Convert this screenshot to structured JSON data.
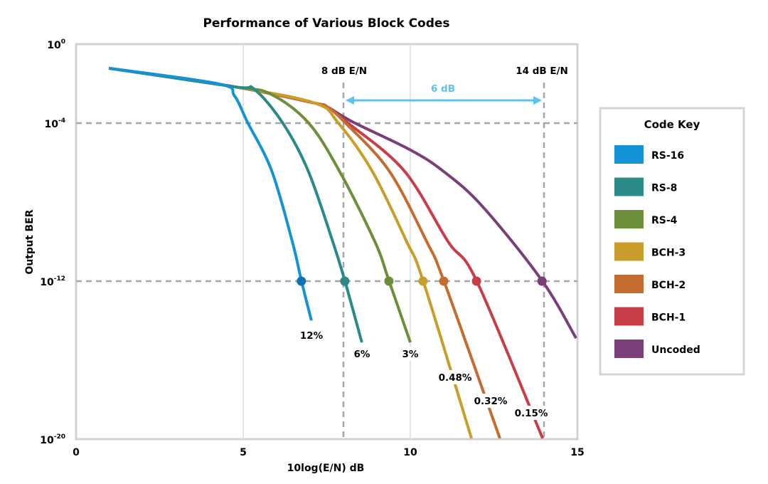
{
  "chart_data": {
    "type": "line",
    "title": "Performance of Various Block Codes",
    "xlabel": "10log(E/N) dB",
    "ylabel": "Output BER",
    "xlim": [
      0,
      15
    ],
    "ylim_log10": [
      -20,
      0
    ],
    "x_ticks": [
      {
        "value": 0,
        "label": "0"
      },
      {
        "value": 5,
        "label": "5"
      },
      {
        "value": 10,
        "label": "10"
      },
      {
        "value": 15,
        "label": "15"
      }
    ],
    "y_ticks": [
      {
        "log10": 0,
        "base": "10",
        "exp": "0"
      },
      {
        "log10": -4,
        "base": "10",
        "exp": "-4"
      },
      {
        "log10": -12,
        "base": "10",
        "exp": "-12"
      },
      {
        "log10": -20,
        "base": "10",
        "exp": "-20"
      }
    ],
    "vertical_gridlines_x": [
      5,
      10
    ],
    "dashed_reference_lines": {
      "horizontal_log10": [
        -4,
        -12
      ],
      "vertical_x": [
        8,
        14
      ]
    },
    "annotations": {
      "left_ref": "8 dB E/N",
      "right_ref": "14 dB E/N",
      "gap": "6 dB",
      "gap_color": "#5bc3f0"
    },
    "legend": {
      "title": "Code Key",
      "position": "right"
    },
    "marker_level_log10": -12,
    "series": [
      {
        "name": "RS-16",
        "color": "#1393d3",
        "marker_color": "#0f72b5",
        "label": "12%",
        "marker_x": 6.74,
        "points": [
          [
            0.98,
            -1.22
          ],
          [
            4.26,
            -2.01
          ],
          [
            4.74,
            -2.62
          ],
          [
            5.13,
            -3.96
          ],
          [
            5.85,
            -6.4
          ],
          [
            6.47,
            -10.0
          ],
          [
            6.74,
            -11.97
          ],
          [
            7.04,
            -13.99
          ]
        ]
      },
      {
        "name": "RS-8",
        "color": "#2a8a87",
        "marker_color": "#2a8a87",
        "label": "6%",
        "marker_x": 8.04,
        "points": [
          [
            0.98,
            -1.22
          ],
          [
            4.74,
            -2.16
          ],
          [
            5.32,
            -2.27
          ],
          [
            6.17,
            -3.96
          ],
          [
            6.94,
            -6.4
          ],
          [
            7.68,
            -10.0
          ],
          [
            8.04,
            -11.97
          ],
          [
            8.55,
            -15.1
          ]
        ]
      },
      {
        "name": "RS-4",
        "color": "#6e8f3a",
        "marker_color": "#6e8f3a",
        "label": "3%",
        "marker_x": 9.36,
        "points": [
          [
            0.98,
            -1.22
          ],
          [
            4.74,
            -2.16
          ],
          [
            5.81,
            -2.52
          ],
          [
            6.94,
            -3.96
          ],
          [
            7.87,
            -6.4
          ],
          [
            8.94,
            -10.0
          ],
          [
            9.36,
            -11.97
          ],
          [
            10.0,
            -15.1
          ]
        ]
      },
      {
        "name": "BCH-3",
        "color": "#c89d2a",
        "marker_color": "#c89d2a",
        "label": "0.48%",
        "marker_x": 10.38,
        "points": [
          [
            0.98,
            -1.22
          ],
          [
            4.74,
            -2.16
          ],
          [
            7.15,
            -2.99
          ],
          [
            7.83,
            -3.96
          ],
          [
            8.85,
            -6.4
          ],
          [
            9.89,
            -10.0
          ],
          [
            10.38,
            -11.97
          ],
          [
            11.83,
            -19.96
          ]
        ]
      },
      {
        "name": "BCH-2",
        "color": "#c46b30",
        "marker_color": "#c46b30",
        "label": "0.32%",
        "marker_x": 11.0,
        "points": [
          [
            0.98,
            -1.22
          ],
          [
            4.74,
            -2.16
          ],
          [
            7.15,
            -2.99
          ],
          [
            7.51,
            -3.17
          ],
          [
            8.04,
            -3.96
          ],
          [
            9.36,
            -6.4
          ],
          [
            10.49,
            -10.0
          ],
          [
            11.0,
            -11.97
          ],
          [
            12.68,
            -19.96
          ]
        ]
      },
      {
        "name": "BCH-1",
        "color": "#c83e48",
        "marker_color": "#c83e48",
        "label": "0.15%",
        "marker_x": 11.98,
        "points": [
          [
            0.98,
            -1.22
          ],
          [
            4.74,
            -2.16
          ],
          [
            7.15,
            -2.99
          ],
          [
            7.51,
            -3.17
          ],
          [
            8.11,
            -3.96
          ],
          [
            9.81,
            -6.4
          ],
          [
            11.13,
            -10.0
          ],
          [
            11.98,
            -11.97
          ],
          [
            13.96,
            -19.96
          ]
        ]
      },
      {
        "name": "Uncoded",
        "color": "#7a3f78",
        "marker_color": "#7a3f78",
        "label": "",
        "marker_x": 13.94,
        "points": [
          [
            0.98,
            -1.22
          ],
          [
            4.74,
            -2.16
          ],
          [
            7.15,
            -2.99
          ],
          [
            7.51,
            -3.17
          ],
          [
            8.3,
            -3.96
          ],
          [
            9.96,
            -5.32
          ],
          [
            10.96,
            -6.4
          ],
          [
            12.15,
            -8.2
          ],
          [
            13.94,
            -11.97
          ],
          [
            14.96,
            -14.89
          ]
        ]
      }
    ]
  }
}
